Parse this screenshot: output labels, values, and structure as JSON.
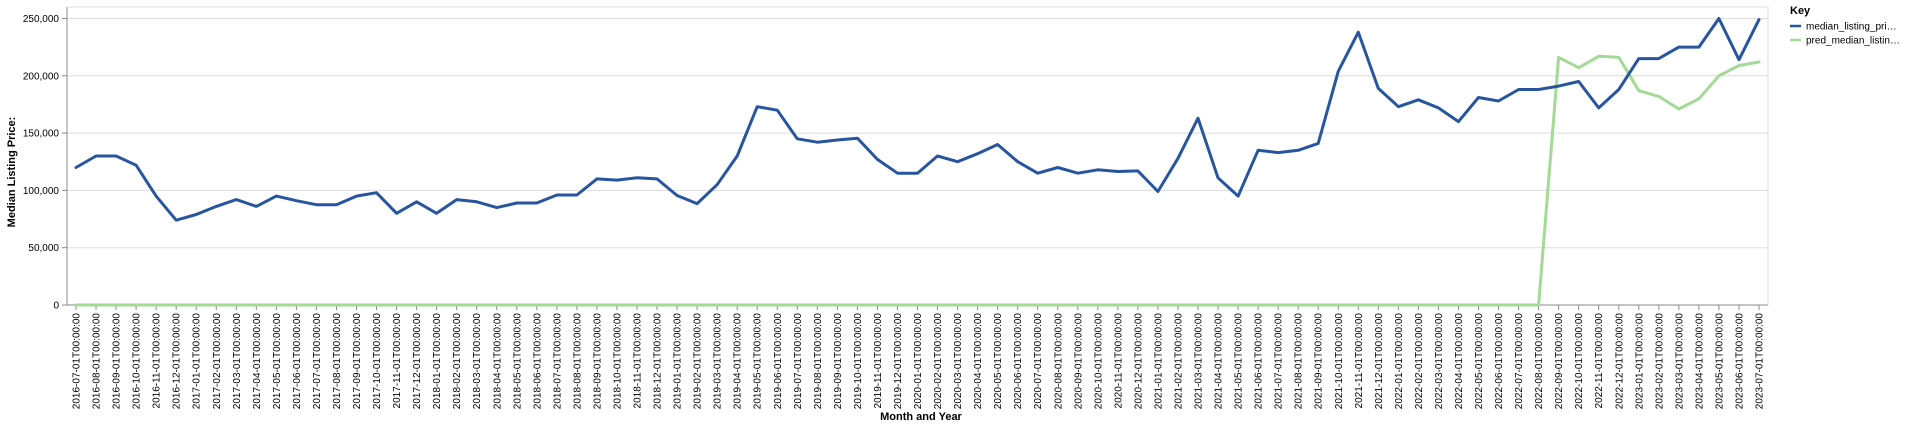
{
  "chart_data": {
    "type": "line",
    "title": "",
    "xlabel": "Month and Year",
    "ylabel": "Median Listing Price:",
    "ylim": [
      0,
      260000
    ],
    "y_ticks": [
      0,
      50000,
      100000,
      150000,
      200000,
      250000
    ],
    "y_tick_labels": [
      "0",
      "50,000",
      "100,000",
      "150,000",
      "200,000",
      "250,000"
    ],
    "grid": true,
    "legend": {
      "title": "Key",
      "position": "top-right"
    },
    "categories": [
      "2016-07-01T00:00:00",
      "2016-08-01T00:00:00",
      "2016-09-01T00:00:00",
      "2016-10-01T00:00:00",
      "2016-11-01T00:00:00",
      "2016-12-01T00:00:00",
      "2017-01-01T00:00:00",
      "2017-02-01T00:00:00",
      "2017-03-01T00:00:00",
      "2017-04-01T00:00:00",
      "2017-05-01T00:00:00",
      "2017-06-01T00:00:00",
      "2017-07-01T00:00:00",
      "2017-08-01T00:00:00",
      "2017-09-01T00:00:00",
      "2017-10-01T00:00:00",
      "2017-11-01T00:00:00",
      "2017-12-01T00:00:00",
      "2018-01-01T00:00:00",
      "2018-02-01T00:00:00",
      "2018-03-01T00:00:00",
      "2018-04-01T00:00:00",
      "2018-05-01T00:00:00",
      "2018-06-01T00:00:00",
      "2018-07-01T00:00:00",
      "2018-08-01T00:00:00",
      "2018-09-01T00:00:00",
      "2018-10-01T00:00:00",
      "2018-11-01T00:00:00",
      "2018-12-01T00:00:00",
      "2019-01-01T00:00:00",
      "2019-02-01T00:00:00",
      "2019-03-01T00:00:00",
      "2019-04-01T00:00:00",
      "2019-05-01T00:00:00",
      "2019-06-01T00:00:00",
      "2019-07-01T00:00:00",
      "2019-08-01T00:00:00",
      "2019-09-01T00:00:00",
      "2019-10-01T00:00:00",
      "2019-11-01T00:00:00",
      "2019-12-01T00:00:00",
      "2020-01-01T00:00:00",
      "2020-02-01T00:00:00",
      "2020-03-01T00:00:00",
      "2020-04-01T00:00:00",
      "2020-05-01T00:00:00",
      "2020-06-01T00:00:00",
      "2020-07-01T00:00:00",
      "2020-08-01T00:00:00",
      "2020-09-01T00:00:00",
      "2020-10-01T00:00:00",
      "2020-11-01T00:00:00",
      "2020-12-01T00:00:00",
      "2021-01-01T00:00:00",
      "2021-02-01T00:00:00",
      "2021-03-01T00:00:00",
      "2021-04-01T00:00:00",
      "2021-05-01T00:00:00",
      "2021-06-01T00:00:00",
      "2021-07-01T00:00:00",
      "2021-08-01T00:00:00",
      "2021-09-01T00:00:00",
      "2021-10-01T00:00:00",
      "2021-11-01T00:00:00",
      "2021-12-01T00:00:00",
      "2022-01-01T00:00:00",
      "2022-02-01T00:00:00",
      "2022-03-01T00:00:00",
      "2022-04-01T00:00:00",
      "2022-05-01T00:00:00",
      "2022-06-01T00:00:00",
      "2022-07-01T00:00:00",
      "2022-08-01T00:00:00",
      "2022-09-01T00:00:00",
      "2022-10-01T00:00:00",
      "2022-11-01T00:00:00",
      "2022-12-01T00:00:00",
      "2023-01-01T00:00:00",
      "2023-02-01T00:00:00",
      "2023-03-01T00:00:00",
      "2023-04-01T00:00:00",
      "2023-05-01T00:00:00",
      "2023-06-01T00:00:00",
      "2023-07-01T00:00:00"
    ],
    "series": [
      {
        "name": "median_listing_pri…",
        "color": "#2855a0",
        "values": [
          120000,
          130000,
          130000,
          122000,
          95000,
          74000,
          79000,
          86000,
          92000,
          86000,
          95000,
          91000,
          87500,
          87500,
          95000,
          98000,
          80000,
          90000,
          80000,
          92000,
          90000,
          85000,
          89000,
          89000,
          96000,
          96000,
          110000,
          109000,
          111000,
          110000,
          95500,
          88500,
          105000,
          130000,
          173000,
          170000,
          145000,
          142000,
          144000,
          145500,
          127000,
          115000,
          115000,
          130000,
          125000,
          132000,
          140000,
          125000,
          115000,
          120000,
          115000,
          118000,
          116500,
          117000,
          99000,
          128000,
          163000,
          111000,
          95000,
          135000,
          133000,
          135000,
          141000,
          204000,
          238000,
          189000,
          173000,
          179000,
          172000,
          160000,
          181000,
          178000,
          188000,
          188000,
          191000,
          195000,
          172000,
          188000,
          215000,
          215000,
          225000,
          225000,
          250000,
          214000,
          249000
        ]
      },
      {
        "name": "pred_median_listin…",
        "color": "#a3da95",
        "values": [
          0,
          0,
          0,
          0,
          0,
          0,
          0,
          0,
          0,
          0,
          0,
          0,
          0,
          0,
          0,
          0,
          0,
          0,
          0,
          0,
          0,
          0,
          0,
          0,
          0,
          0,
          0,
          0,
          0,
          0,
          0,
          0,
          0,
          0,
          0,
          0,
          0,
          0,
          0,
          0,
          0,
          0,
          0,
          0,
          0,
          0,
          0,
          0,
          0,
          0,
          0,
          0,
          0,
          0,
          0,
          0,
          0,
          0,
          0,
          0,
          0,
          0,
          0,
          0,
          0,
          0,
          0,
          0,
          0,
          0,
          0,
          0,
          0,
          0,
          216000,
          207000,
          217000,
          216000,
          187000,
          182000,
          171000,
          180000,
          200000,
          209000,
          212000
        ]
      }
    ]
  }
}
